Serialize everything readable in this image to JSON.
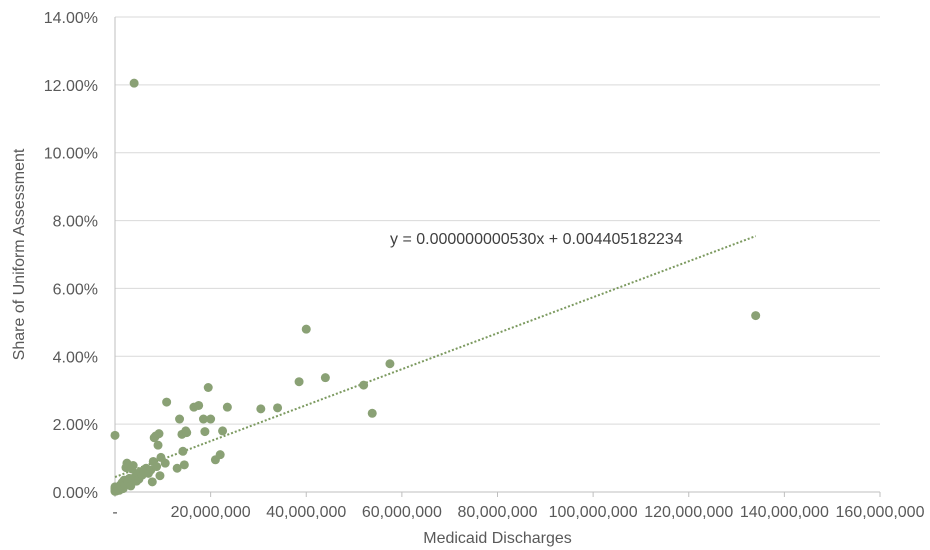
{
  "chart_data": {
    "type": "scatter",
    "title": "",
    "xlabel": "Medicaid Discharges",
    "ylabel": "Share of Uniform Assessment",
    "xlim": [
      0,
      160000000
    ],
    "ylim": [
      0,
      0.14
    ],
    "x_ticks": [
      {
        "value": 0,
        "label": "-"
      },
      {
        "value": 20000000,
        "label": "20,000,000"
      },
      {
        "value": 40000000,
        "label": "40,000,000"
      },
      {
        "value": 60000000,
        "label": "60,000,000"
      },
      {
        "value": 80000000,
        "label": "80,000,000"
      },
      {
        "value": 100000000,
        "label": "100,000,000"
      },
      {
        "value": 120000000,
        "label": "120,000,000"
      },
      {
        "value": 140000000,
        "label": "140,000,000"
      },
      {
        "value": 160000000,
        "label": "160,000,000"
      }
    ],
    "y_ticks": [
      {
        "value": 0,
        "label": "0.00%"
      },
      {
        "value": 0.02,
        "label": "2.00%"
      },
      {
        "value": 0.04,
        "label": "4.00%"
      },
      {
        "value": 0.06,
        "label": "6.00%"
      },
      {
        "value": 0.08,
        "label": "8.00%"
      },
      {
        "value": 0.1,
        "label": "10.00%"
      },
      {
        "value": 0.12,
        "label": "12.00%"
      },
      {
        "value": 0.14,
        "label": "14.00%"
      }
    ],
    "grid": "horizontal",
    "point_color": "#8aa175",
    "trend_color": "#7c9a60",
    "trendline": {
      "type": "linear",
      "slope": 5.3e-10,
      "intercept": 0.004405182234,
      "x_range": [
        0,
        134000000
      ],
      "equation_label": "y = 0.000000000530x + 0.004405182234"
    },
    "series": [
      {
        "points": [
          [
            0,
            0.0002
          ],
          [
            0,
            0.0005
          ],
          [
            0,
            0.001
          ],
          [
            0,
            0.0015
          ],
          [
            0,
            0.0167
          ],
          [
            300000,
            0.0003
          ],
          [
            500000,
            0.0008
          ],
          [
            700000,
            0.0012
          ],
          [
            900000,
            0.0005
          ],
          [
            1100000,
            0.002
          ],
          [
            1300000,
            0.0015
          ],
          [
            1500000,
            0.0028
          ],
          [
            1700000,
            0.001
          ],
          [
            1900000,
            0.0035
          ],
          [
            2100000,
            0.002
          ],
          [
            2300000,
            0.0072
          ],
          [
            2500000,
            0.0085
          ],
          [
            2700000,
            0.003
          ],
          [
            3000000,
            0.004
          ],
          [
            3300000,
            0.0018
          ],
          [
            3500000,
            0.0068
          ],
          [
            3800000,
            0.0078
          ],
          [
            4000000,
            0.1205
          ],
          [
            4200000,
            0.0045
          ],
          [
            4500000,
            0.0032
          ],
          [
            4800000,
            0.0055
          ],
          [
            5000000,
            0.0038
          ],
          [
            5300000,
            0.006
          ],
          [
            5700000,
            0.005
          ],
          [
            6000000,
            0.0062
          ],
          [
            6500000,
            0.007
          ],
          [
            7000000,
            0.0055
          ],
          [
            7500000,
            0.0065
          ],
          [
            7800000,
            0.003
          ],
          [
            8000000,
            0.009
          ],
          [
            8200000,
            0.016
          ],
          [
            8500000,
            0.0165
          ],
          [
            8700000,
            0.0075
          ],
          [
            9000000,
            0.0138
          ],
          [
            9200000,
            0.0172
          ],
          [
            9400000,
            0.0048
          ],
          [
            9600000,
            0.0102
          ],
          [
            10500000,
            0.0085
          ],
          [
            10800000,
            0.0265
          ],
          [
            13000000,
            0.007
          ],
          [
            13500000,
            0.0215
          ],
          [
            14000000,
            0.017
          ],
          [
            14200000,
            0.012
          ],
          [
            14500000,
            0.008
          ],
          [
            14800000,
            0.018
          ],
          [
            15000000,
            0.0175
          ],
          [
            16500000,
            0.025
          ],
          [
            17500000,
            0.0255
          ],
          [
            18500000,
            0.0215
          ],
          [
            18800000,
            0.0178
          ],
          [
            19500000,
            0.0308
          ],
          [
            20000000,
            0.0215
          ],
          [
            21000000,
            0.0095
          ],
          [
            22000000,
            0.011
          ],
          [
            22500000,
            0.018
          ],
          [
            23500000,
            0.025
          ],
          [
            30500000,
            0.0245
          ],
          [
            34000000,
            0.0248
          ],
          [
            38500000,
            0.0325
          ],
          [
            40000000,
            0.048
          ],
          [
            44000000,
            0.0337
          ],
          [
            52000000,
            0.0315
          ],
          [
            53800000,
            0.0232
          ],
          [
            57500000,
            0.0378
          ],
          [
            134000000,
            0.052
          ]
        ]
      }
    ]
  }
}
